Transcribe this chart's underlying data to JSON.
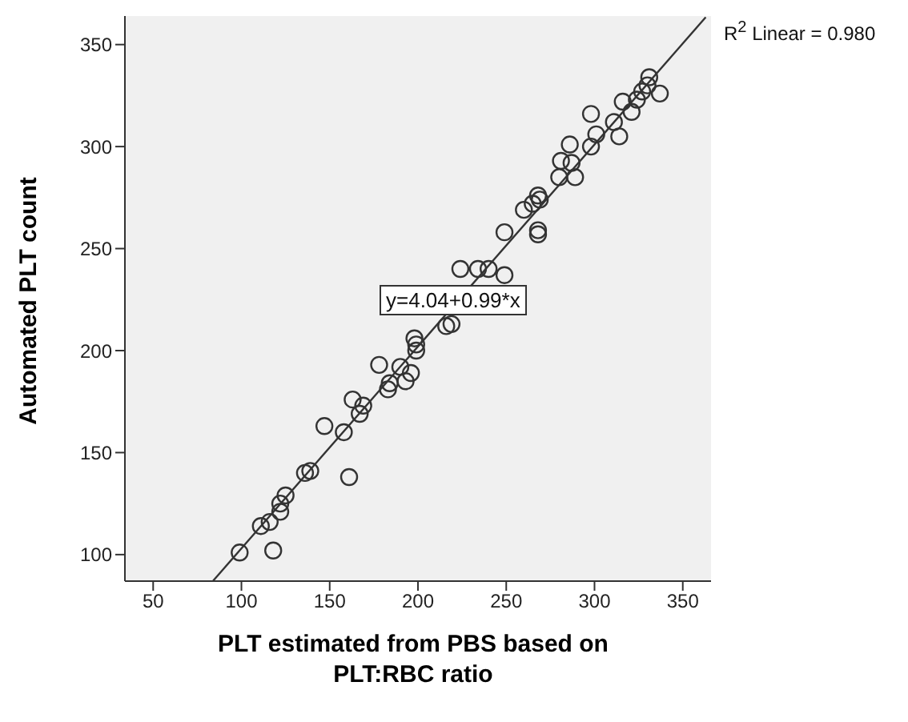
{
  "chart_data": {
    "type": "scatter",
    "xlabel": "PLT estimated from PBS based on PLT:RBC ratio",
    "ylabel": "Automated PLT count",
    "annotations": [
      "R$^{2}$ Linear = 0.980",
      "y=4.04+0.99*x"
    ],
    "xlim": [
      34,
      366
    ],
    "ylim": [
      87,
      364
    ],
    "xticks": [
      50,
      100,
      150,
      200,
      250,
      300,
      350
    ],
    "yticks": [
      100,
      150,
      200,
      250,
      300,
      350
    ],
    "grid": false,
    "series": [
      {
        "type": "scatter",
        "marker": "circle",
        "color": "#333333",
        "x": [
          99,
          111,
          116,
          118,
          122,
          122,
          125,
          136,
          139,
          147,
          158,
          161,
          163,
          167,
          169,
          178,
          183,
          184,
          190,
          193,
          196,
          198,
          199,
          199,
          216,
          219,
          224,
          234,
          240,
          249,
          249,
          260,
          265,
          268,
          268,
          269,
          268,
          280,
          281,
          286,
          287,
          289,
          298,
          298,
          301,
          311,
          314,
          316,
          321,
          324,
          327,
          330,
          331,
          337
        ],
        "values": [
          101,
          114,
          116,
          102,
          121,
          125,
          129,
          140,
          141,
          163,
          160,
          138,
          176,
          169,
          173,
          193,
          181,
          184,
          192,
          185,
          189,
          206,
          203,
          200,
          212,
          213,
          240,
          240,
          240,
          237,
          258,
          269,
          272,
          257,
          259,
          274,
          276,
          285,
          293,
          301,
          292,
          285,
          300,
          316,
          306,
          312,
          305,
          322,
          317,
          323,
          327,
          330,
          334,
          326
        ]
      },
      {
        "type": "line",
        "marker": "none",
        "line_style": "solid",
        "color": "#333333",
        "x": [
          84,
          363
        ],
        "values": [
          87.2,
          363.4
        ]
      }
    ]
  }
}
